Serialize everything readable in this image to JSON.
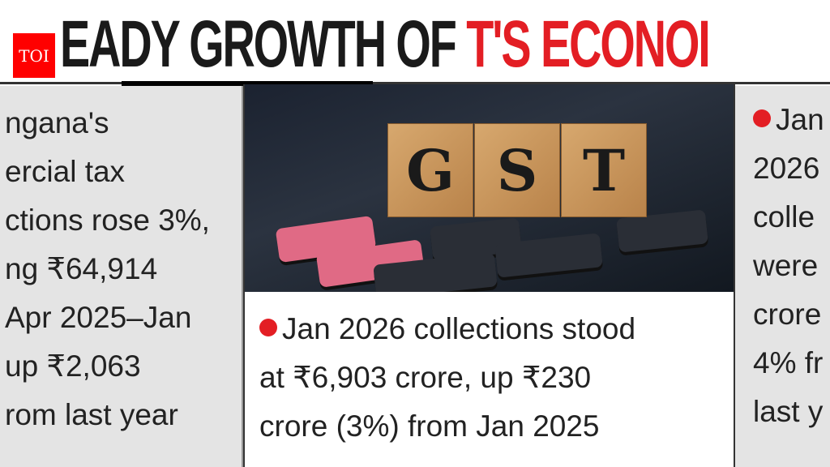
{
  "headline": {
    "part1": "EADY GROWTH OF ",
    "part2": "T'S ECONOI"
  },
  "logo": {
    "text": "TOI"
  },
  "left_panel": {
    "lines": [
      "ngana's",
      "ercial tax",
      "ctions rose 3%,",
      "ng ₹64,914",
      "Apr 2025–Jan",
      "up ₹2,063",
      "rom last year"
    ]
  },
  "photo": {
    "cubes": [
      "G",
      "S",
      "T"
    ]
  },
  "middle_caption": {
    "lines": [
      "Jan 2026 collections stood",
      "at ₹6,903 crore, up ₹230",
      "crore (3%) from Jan 2025"
    ]
  },
  "right_panel": {
    "lines": [
      "Jan",
      "2026",
      "colle",
      "were",
      "crore",
      "4% fr",
      "last y"
    ]
  },
  "colors": {
    "accent": "#e31e24",
    "panel": "#e4e4e4"
  }
}
